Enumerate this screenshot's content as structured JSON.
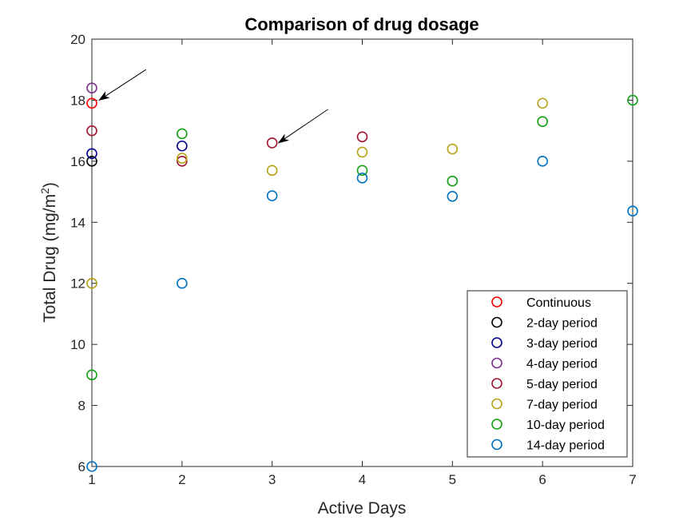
{
  "chart_data": {
    "type": "scatter",
    "title": "Comparison of drug dosage",
    "xlabel": "Active Days",
    "ylabel": "Total Drug (mg/m",
    "ylabel_superscript": "2",
    "ylabel_suffix": ")",
    "xlim": [
      1,
      7
    ],
    "ylim": [
      6,
      20
    ],
    "xticks": [
      "1",
      "2",
      "3",
      "4",
      "5",
      "6",
      "7"
    ],
    "yticks": [
      "6",
      "8",
      "10",
      "12",
      "14",
      "16",
      "18",
      "20"
    ],
    "grid": false,
    "legend_position": "bottom-right",
    "series": [
      {
        "name": "Continuous",
        "color": "#ff0000",
        "x": [
          1
        ],
        "y": [
          17.9
        ]
      },
      {
        "name": "2-day period",
        "color": "#000000",
        "x": [
          1
        ],
        "y": [
          16.0
        ]
      },
      {
        "name": "3-day period",
        "color": "#00008b",
        "x": [
          1,
          2
        ],
        "y": [
          16.25,
          16.5
        ]
      },
      {
        "name": "4-day period",
        "color": "#7e2f8e",
        "x": [
          1
        ],
        "y": [
          18.4
        ]
      },
      {
        "name": "5-day period",
        "color": "#a2142f",
        "x": [
          1,
          2,
          3,
          4
        ],
        "y": [
          17.0,
          16.0,
          16.6,
          16.8
        ]
      },
      {
        "name": "7-day period",
        "color": "#b5a316",
        "x": [
          1,
          2,
          3,
          4,
          5,
          6
        ],
        "y": [
          12.0,
          16.1,
          15.7,
          16.3,
          16.4,
          17.9
        ]
      },
      {
        "name": "10-day period",
        "color": "#11a011",
        "x": [
          1,
          2,
          4,
          5,
          6,
          7
        ],
        "y": [
          9.0,
          16.9,
          15.7,
          15.35,
          17.3,
          18.0
        ]
      },
      {
        "name": "14-day period",
        "color": "#0072bd",
        "x": [
          1,
          2,
          3,
          4,
          5,
          6,
          7
        ],
        "y": [
          6.0,
          12.0,
          14.87,
          15.45,
          14.85,
          16.0,
          14.37
        ]
      }
    ],
    "annotations": [
      {
        "type": "arrow",
        "from": [
          1.6,
          19.0
        ],
        "to": [
          1.08,
          18.0
        ]
      },
      {
        "type": "arrow",
        "from": [
          3.62,
          17.7
        ],
        "to": [
          3.07,
          16.6
        ]
      }
    ]
  }
}
